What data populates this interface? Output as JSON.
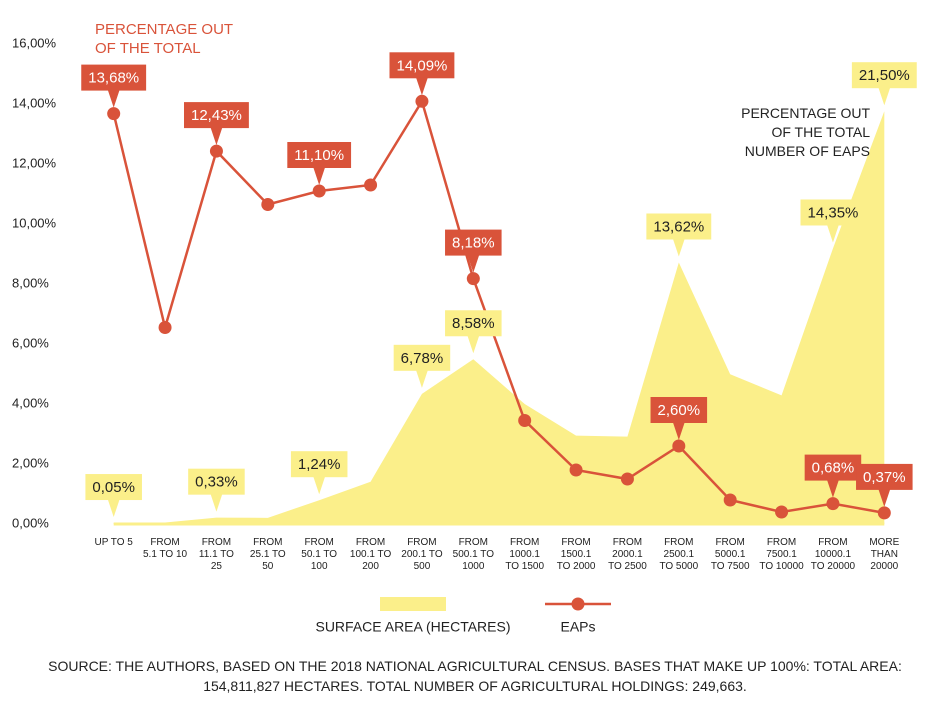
{
  "chart_data": {
    "type": "area-line",
    "annotations": [
      "PERCENTAGE OUT OF THE TOTAL",
      "PERCENTAGE OUT OF THE TOTAL NUMBER OF EAPs"
    ],
    "source": "SOURCE: THE AUTHORS, BASED ON THE 2018 NATIONAL AGRICULTURAL CENSUS. BASES THAT MAKE UP 100%: TOTAL AREA: 154,811,827 HECTARES. TOTAL NUMBER OF AGRICULTURAL HOLDINGS: 249,663.",
    "categories": [
      "UP TO 5",
      "FROM 5.1 TO 10",
      "FROM 11.1 TO 25",
      "FROM 25.1 TO 50",
      "FROM 50.1 TO 100",
      "FROM 100.1 TO 200",
      "FROM 200.1 TO 500",
      "FROM 500.1 TO 1000",
      "FROM 1000.1 TO 1500",
      "FROM 1500.1 TO 2000",
      "FROM 2000.1 TO 2500",
      "FROM 2500.1 TO 5000",
      "FROM 5000.1 TO 7500",
      "FROM 7500.1 TO 10000",
      "FROM 10000.1 TO 20000",
      "MORE THAN 20000"
    ],
    "ylim": [
      0,
      16
    ],
    "yticks": [
      {
        "value": 0,
        "label": "0,00%"
      },
      {
        "value": 2,
        "label": "2,00%"
      },
      {
        "value": 4,
        "label": "4,00%"
      },
      {
        "value": 6,
        "label": "6,00%"
      },
      {
        "value": 8,
        "label": "8,00%"
      },
      {
        "value": 10,
        "label": "10,00%"
      },
      {
        "value": 12,
        "label": "12,00%"
      },
      {
        "value": 14,
        "label": "14,00%"
      },
      {
        "value": 16,
        "label": "16,00%"
      }
    ],
    "y2lim": [
      0,
      25
    ],
    "grid": false,
    "series": [
      {
        "name": "SURFACE AREA (HECTARES)",
        "color": "#fbef8a",
        "kind": "area",
        "axis": "y2",
        "values": [
          0.05,
          0.08,
          0.33,
          0.32,
          1.24,
          2.2,
          6.78,
          8.58,
          6.25,
          4.6,
          4.55,
          13.62,
          7.8,
          6.7,
          14.35,
          21.5
        ],
        "value_labels": [
          "0,05%",
          null,
          "0,33%",
          null,
          "1,24%",
          null,
          "6,78%",
          "8,58%",
          null,
          null,
          null,
          "13,62%",
          null,
          null,
          "14,35%",
          "21,50%"
        ]
      },
      {
        "name": "EAPs",
        "color": "#d9533a",
        "kind": "line",
        "values": [
          13.68,
          6.55,
          12.43,
          10.65,
          11.1,
          11.3,
          14.09,
          8.18,
          3.45,
          1.8,
          1.5,
          2.6,
          0.8,
          0.4,
          0.68,
          0.37
        ],
        "value_labels": [
          "13,68%",
          null,
          "12,43%",
          null,
          "11,10%",
          null,
          "14,09%",
          "8,18%",
          null,
          null,
          null,
          "2,60%",
          null,
          null,
          "0,68%",
          "0,37%"
        ]
      }
    ]
  }
}
